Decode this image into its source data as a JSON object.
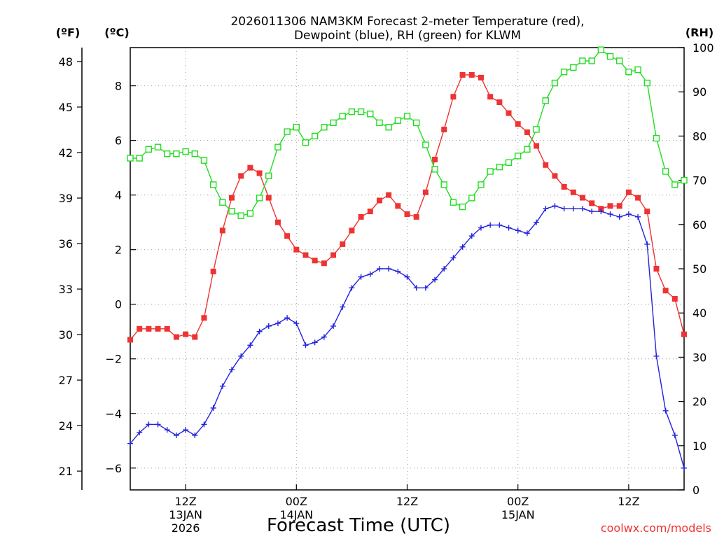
{
  "chart_data": {
    "type": "line",
    "title": "2026011306 NAM3KM Forecast 2-meter Temperature (red),",
    "title_line2": "Dewpoint (blue), RH (green) for KLWM",
    "xlabel": "Forecast Time (UTC)",
    "credit": "coolwx.com/models",
    "unit_f": "(ºF)",
    "unit_c": "(ºC)",
    "unit_rh": "(RH)",
    "x_unit": "forecast hour (hours after 06Z 13JAN2026)",
    "xlim": [
      0,
      60
    ],
    "c_range": [
      -6.8,
      9.4
    ],
    "f_range": [
      19.76,
      48.92
    ],
    "rh_range": [
      0,
      100
    ],
    "x_ticks": [
      {
        "x": 6,
        "l1": "12Z",
        "l2": "13JAN",
        "l3": "2026"
      },
      {
        "x": 18,
        "l1": "00Z",
        "l2": "14JAN",
        "l3": ""
      },
      {
        "x": 30,
        "l1": "12Z",
        "l2": "",
        "l3": ""
      },
      {
        "x": 42,
        "l1": "00Z",
        "l2": "15JAN",
        "l3": ""
      },
      {
        "x": 54,
        "l1": "12Z",
        "l2": "",
        "l3": ""
      }
    ],
    "c_ticks": [
      -6,
      -4,
      -2,
      0,
      2,
      4,
      6,
      8
    ],
    "f_ticks": [
      21,
      24,
      27,
      30,
      33,
      36,
      39,
      42,
      45,
      48
    ],
    "rh_ticks": [
      0,
      10,
      20,
      30,
      40,
      50,
      60,
      70,
      80,
      90,
      100
    ],
    "series": [
      {
        "name": "Temperature",
        "color": "#ee3333",
        "marker": "filled-square",
        "axis": "c",
        "values": [
          -1.3,
          -0.9,
          -0.9,
          -0.9,
          -0.9,
          -1.2,
          -1.1,
          -1.2,
          -0.5,
          1.2,
          2.7,
          3.9,
          4.7,
          5.0,
          4.8,
          3.9,
          3.0,
          2.5,
          2.0,
          1.8,
          1.6,
          1.5,
          1.8,
          2.2,
          2.7,
          3.2,
          3.4,
          3.8,
          4.0,
          3.6,
          3.3,
          3.2,
          4.1,
          5.3,
          6.4,
          7.6,
          8.4,
          8.4,
          8.3,
          7.6,
          7.4,
          7.0,
          6.6,
          6.3,
          5.8,
          5.1,
          4.7,
          4.3,
          4.1,
          3.9,
          3.7,
          3.5,
          3.6,
          3.6,
          4.1,
          3.9,
          3.4,
          1.3,
          0.5,
          0.2,
          -1.1
        ]
      },
      {
        "name": "Dewpoint",
        "color": "#2222dd",
        "marker": "plus",
        "axis": "c",
        "values": [
          -5.1,
          -4.7,
          -4.4,
          -4.4,
          -4.6,
          -4.8,
          -4.6,
          -4.8,
          -4.4,
          -3.8,
          -3.0,
          -2.4,
          -1.9,
          -1.5,
          -1.0,
          -0.8,
          -0.7,
          -0.5,
          -0.7,
          -1.5,
          -1.4,
          -1.2,
          -0.8,
          -0.1,
          0.6,
          1.0,
          1.1,
          1.3,
          1.3,
          1.2,
          1.0,
          0.6,
          0.6,
          0.9,
          1.3,
          1.7,
          2.1,
          2.5,
          2.8,
          2.9,
          2.9,
          2.8,
          2.7,
          2.6,
          3.0,
          3.5,
          3.6,
          3.5,
          3.5,
          3.5,
          3.4,
          3.4,
          3.3,
          3.2,
          3.3,
          3.2,
          2.2,
          -1.9,
          -3.9,
          -4.8,
          -6.0
        ]
      },
      {
        "name": "RH",
        "color": "#22dd22",
        "marker": "open-square",
        "axis": "rh",
        "values": [
          75,
          75,
          77,
          77.5,
          76,
          76,
          76.5,
          76,
          74.5,
          69,
          65,
          63,
          62,
          62.5,
          66,
          71,
          77.5,
          81,
          82,
          78.5,
          80,
          82,
          83,
          84.5,
          85.5,
          85.5,
          85,
          83,
          82,
          83.5,
          84.5,
          83,
          78,
          72.5,
          69,
          65,
          64,
          66,
          69,
          72,
          73,
          74,
          75.5,
          77,
          81.5,
          88,
          92,
          94.5,
          95.5,
          97,
          97,
          99.5,
          98,
          97,
          94.5,
          95,
          92,
          79.5,
          72,
          69,
          70
        ]
      }
    ]
  }
}
